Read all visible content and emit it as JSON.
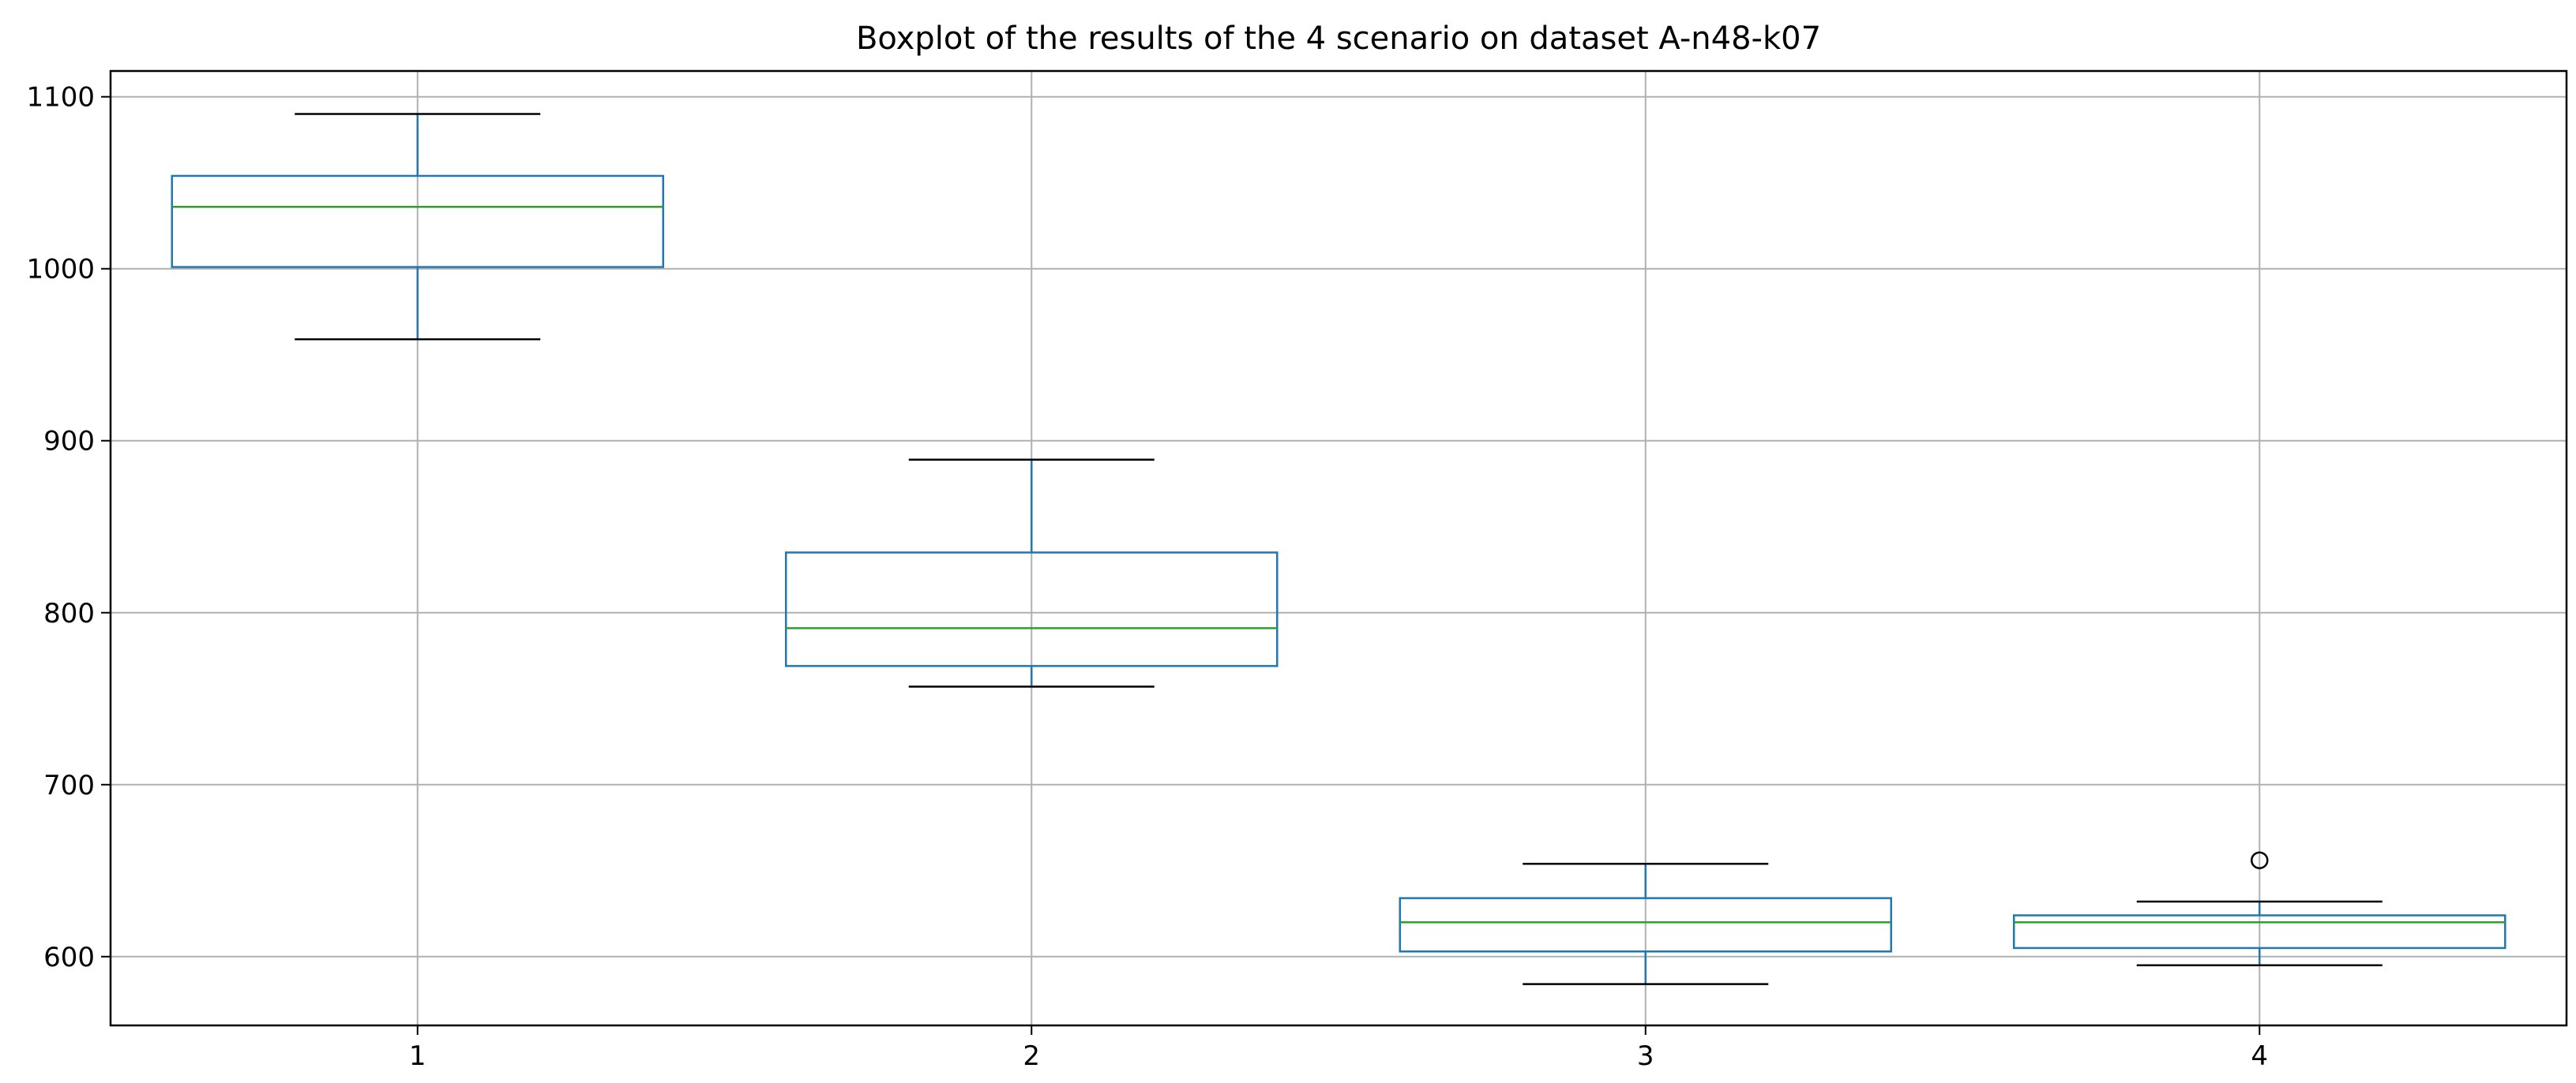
{
  "chart_data": {
    "type": "boxplot",
    "title": "Boxplot of the results of the 4 scenario on dataset A-n48-k07",
    "xlabel": "",
    "ylabel": "",
    "categories": [
      "1",
      "2",
      "3",
      "4"
    ],
    "ylim": [
      560,
      1115
    ],
    "yticks": [
      600,
      700,
      800,
      900,
      1000,
      1100
    ],
    "grid": true,
    "boxes": [
      {
        "category": "1",
        "whisker_low": 959,
        "q1": 1001,
        "median": 1036,
        "q3": 1054,
        "whisker_high": 1090,
        "outliers": []
      },
      {
        "category": "2",
        "whisker_low": 757,
        "q1": 769,
        "median": 791,
        "q3": 835,
        "whisker_high": 889,
        "outliers": []
      },
      {
        "category": "3",
        "whisker_low": 584,
        "q1": 603,
        "median": 620,
        "q3": 634,
        "whisker_high": 654,
        "outliers": []
      },
      {
        "category": "4",
        "whisker_low": 595,
        "q1": 605,
        "median": 620,
        "q3": 624,
        "whisker_high": 632,
        "outliers": [
          656
        ]
      }
    ]
  },
  "colors": {
    "box": "#1f77b4",
    "median": "#2ca02c",
    "cap": "#000000",
    "grid": "#b0b0b0",
    "axis": "#000000"
  }
}
